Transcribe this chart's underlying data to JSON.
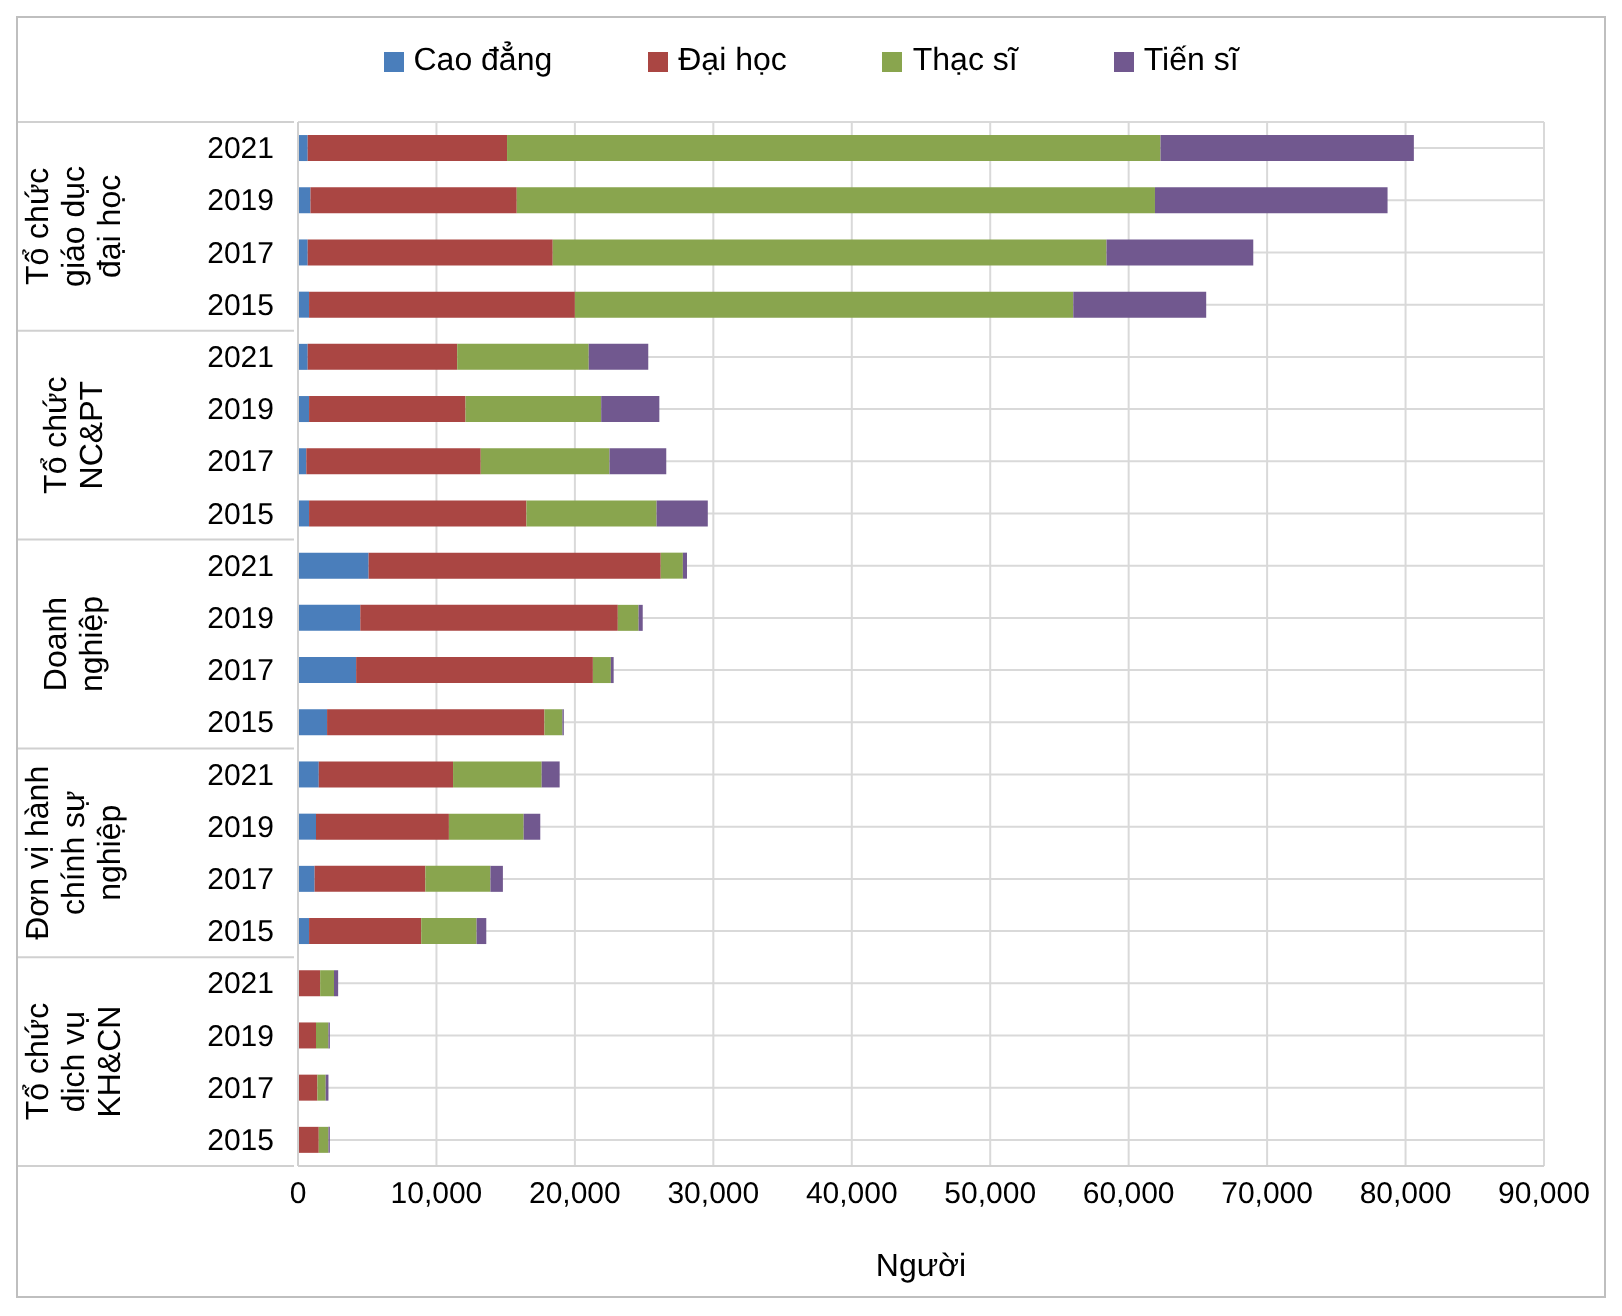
{
  "chart_data": {
    "type": "bar",
    "orientation": "horizontal",
    "stacked": true,
    "xlabel": "Người",
    "categories": [
      "2021",
      "2019",
      "2017",
      "2015",
      "2021",
      "2019",
      "2017",
      "2015",
      "2021",
      "2019",
      "2017",
      "2015",
      "2021",
      "2019",
      "2017",
      "2015",
      "2021",
      "2019",
      "2017",
      "2015"
    ],
    "annotations": [
      "Tổ chức giáo dục đại học",
      "Tổ chức NC&PT",
      "Doanh nghiệp",
      "Đơn vị hành chính sự nghiệp",
      "Tổ chức dịch vụ KH&CN"
    ],
    "series": [
      {
        "name": "Cao đẳng",
        "color": "#4a7ebb",
        "values": [
          700,
          900,
          700,
          800,
          700,
          800,
          600,
          800,
          5100,
          4500,
          4200,
          2100,
          1500,
          1300,
          1200,
          800,
          null,
          null,
          null,
          null
        ]
      },
      {
        "name": "Đại học",
        "color": "#aa4643",
        "values": [
          14400,
          14900,
          17700,
          19200,
          10800,
          11300,
          12600,
          15700,
          21100,
          18600,
          17100,
          15700,
          9700,
          9600,
          8000,
          8100,
          1600,
          1300,
          1400,
          1500
        ]
      },
      {
        "name": "Thạc sĩ",
        "color": "#89a54e",
        "values": [
          47200,
          46100,
          40000,
          36000,
          9500,
          9800,
          9300,
          9400,
          1600,
          1500,
          1300,
          1300,
          6400,
          5400,
          4700,
          4000,
          1000,
          900,
          600,
          700
        ]
      },
      {
        "name": "Tiến sĩ",
        "color": "#71588f",
        "values": [
          18300,
          16800,
          10600,
          9600,
          4300,
          4200,
          4100,
          3700,
          300,
          300,
          200,
          100,
          1300,
          1200,
          900,
          700,
          300,
          100,
          200,
          100
        ]
      }
    ],
    "xlim": [
      0,
      90000
    ],
    "xticks": [
      0,
      {
        "value": 10000,
        "label": "10,000"
      },
      {
        "value": 20000,
        "label": "20,000"
      },
      {
        "value": 30000,
        "label": "30,000"
      },
      {
        "value": 40000,
        "label": "40,000"
      },
      {
        "value": 50000,
        "label": "50,000"
      },
      {
        "value": 60000,
        "label": "60,000"
      },
      {
        "value": 70000,
        "label": "70,000"
      },
      {
        "value": 80000,
        "label": "80,000"
      },
      {
        "value": 90000,
        "label": "90,000"
      }
    ],
    "grid": true,
    "legend": "top"
  }
}
